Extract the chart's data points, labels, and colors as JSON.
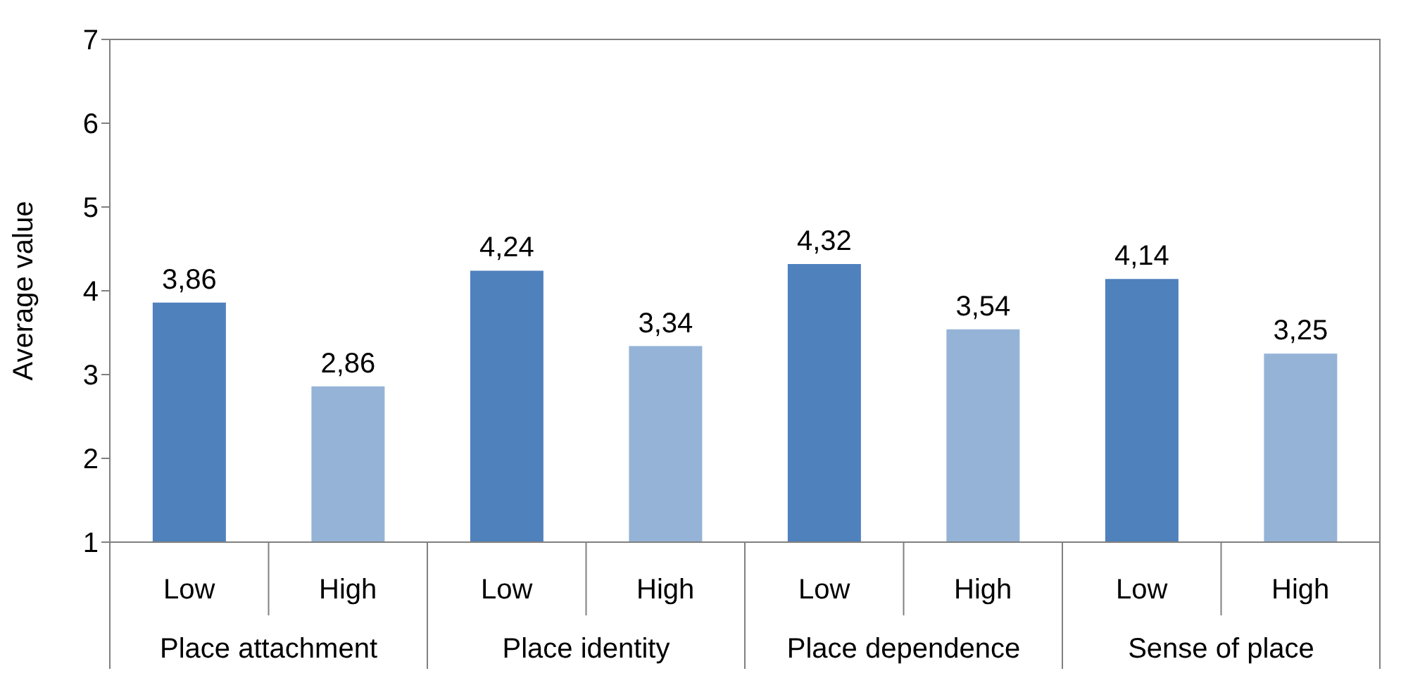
{
  "chart_data": {
    "type": "bar",
    "ylabel": "Average value",
    "categories": [
      "Low",
      "High",
      "Low",
      "High",
      "Low",
      "High",
      "Low",
      "High"
    ],
    "values": [
      3.86,
      2.86,
      4.24,
      3.34,
      4.32,
      3.54,
      4.14,
      3.25
    ],
    "colors": [
      "#4f81bd",
      "#95b3d7",
      "#4f81bd",
      "#95b3d7",
      "#4f81bd",
      "#95b3d7",
      "#4f81bd",
      "#95b3d7"
    ],
    "value_labels": [
      "3,86",
      "2,86",
      "4,24",
      "3,34",
      "4,32",
      "3,54",
      "4,14",
      "3,25"
    ],
    "annotations": [
      "Place attachment",
      "Place identity",
      "Place dependence",
      "Sense of place"
    ],
    "ylim": [
      1,
      7
    ],
    "yticks": [
      1,
      2,
      3,
      4,
      5,
      6,
      7
    ]
  }
}
